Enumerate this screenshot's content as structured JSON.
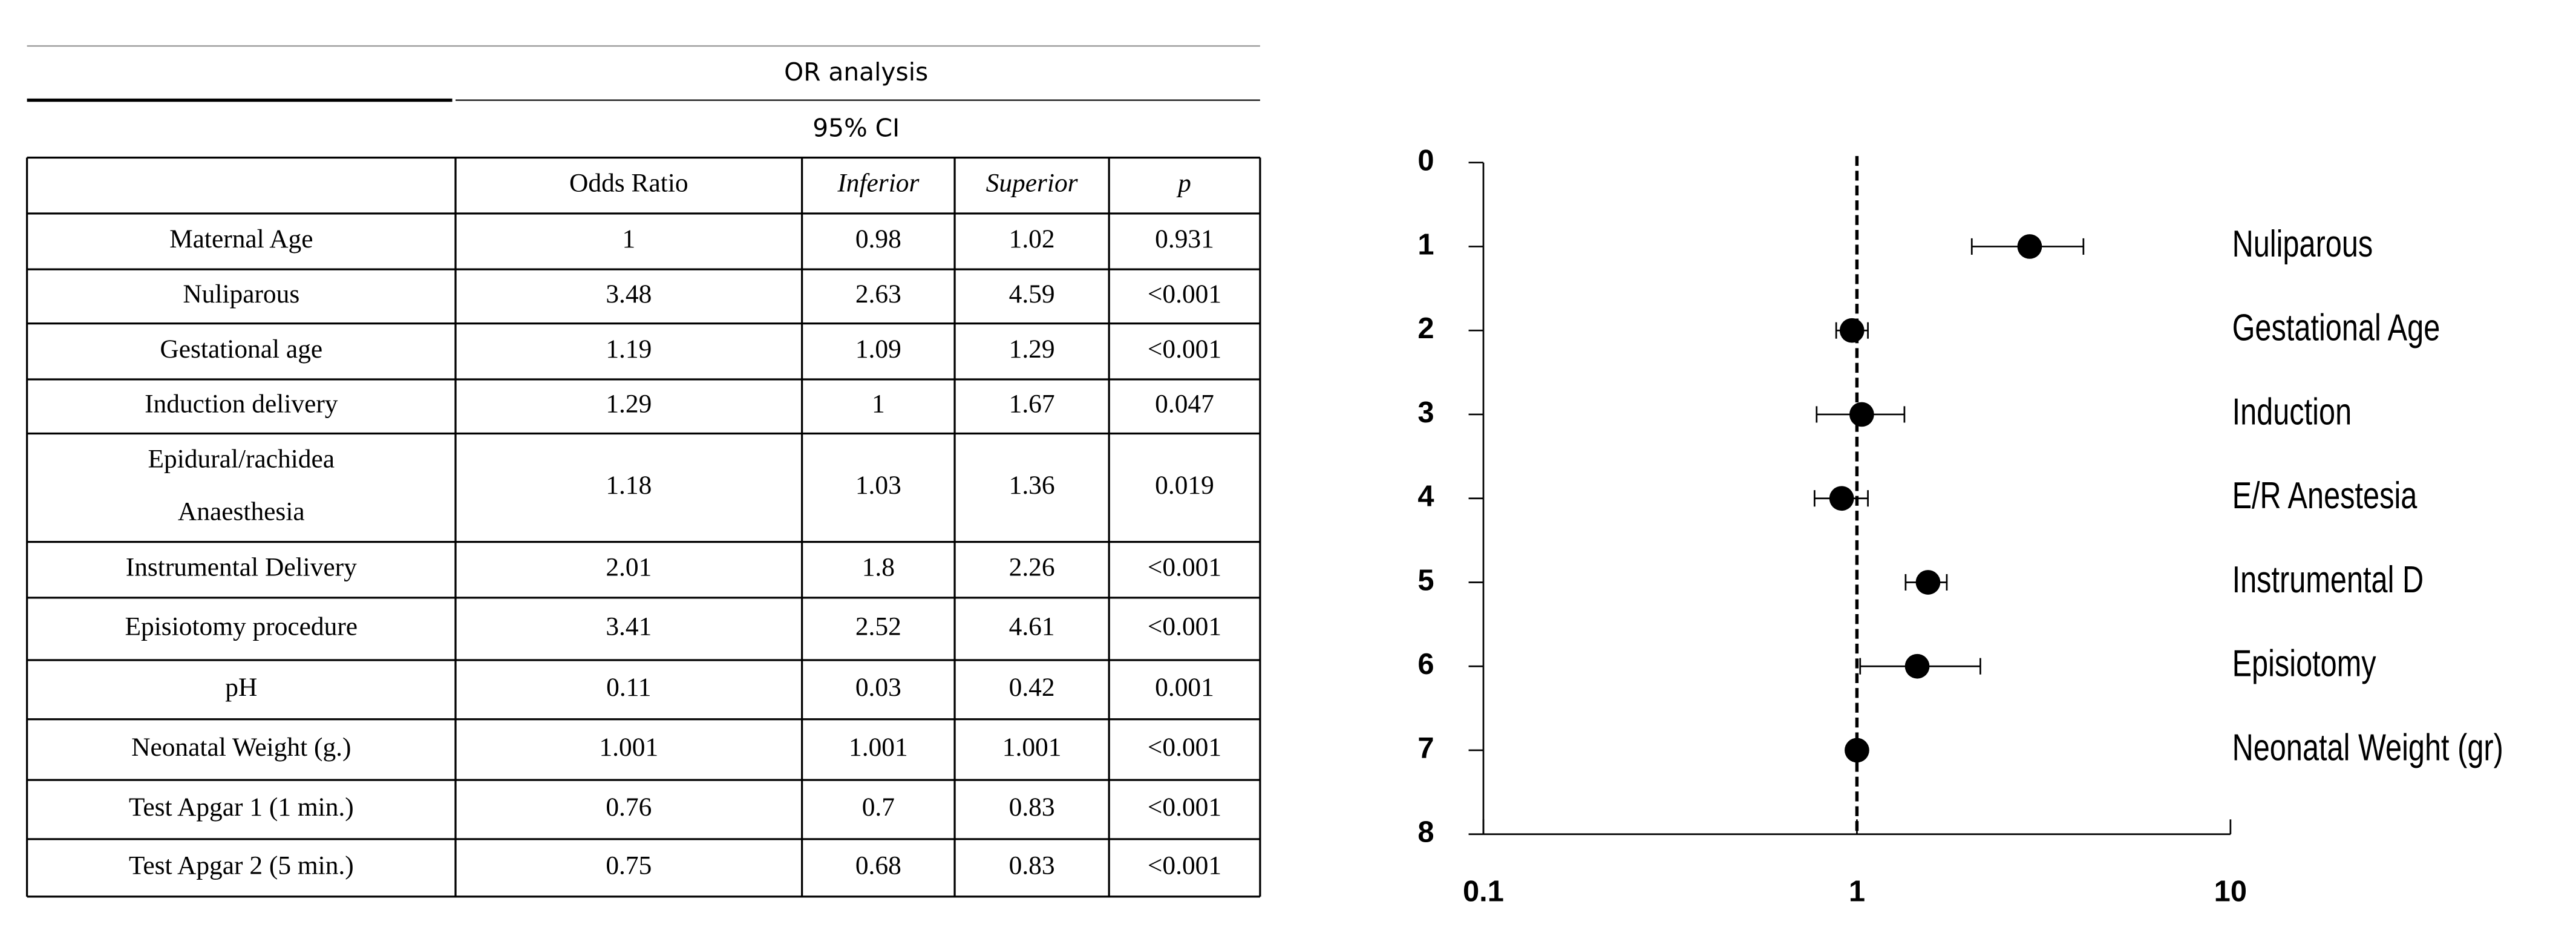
{
  "table": {
    "title": "OR analysis",
    "subtitle": "95% CI",
    "header": [
      "Odds Ratio",
      "Inferior",
      "Superior",
      "p"
    ],
    "rows": [
      [
        "Maternal Age",
        "1",
        "0.98",
        "1.02",
        "0.931"
      ],
      [
        "Nuliparous",
        "3.48",
        "2.63",
        "4.59",
        "<0.001"
      ],
      [
        "Gestational age",
        "1.19",
        "1.09",
        "1.29",
        "<0.001"
      ],
      [
        "Induction delivery",
        "1.29",
        "1",
        "1.67",
        "0.047"
      ],
      [
        [
          "Epidural/rachidea",
          "Anaesthesia"
        ],
        "1.18",
        "1.03",
        "1.36",
        "0.019"
      ],
      [
        "Instrumental Delivery",
        "2.01",
        "1.8",
        "2.26",
        "<0.001"
      ],
      [
        "Episiotomy procedure",
        "3.41",
        "2.52",
        "4.61",
        "<0.001"
      ],
      [
        "pH",
        "0.11",
        "0.03",
        "0.42",
        "0.001"
      ],
      [
        "Neonatal Weight (g.)",
        "1.001",
        "1.001",
        "1.001",
        "<0.001"
      ],
      [
        "Test Apgar 1 (1 min.)",
        "0.76",
        "0.7",
        "0.83",
        "<0.001"
      ],
      [
        "Test Apgar 2 (5 min.)",
        "0.75",
        "0.68",
        "0.83",
        "<0.001"
      ]
    ]
  },
  "chart_data": {
    "type": "forest",
    "log_x": true,
    "reference": 1,
    "categories": [
      "Nuliparous",
      "Gestational Age",
      "Induction",
      "E/R Anestesia",
      "Instrumental D",
      "Episiotomy",
      "Neonatal Weight (gr)"
    ],
    "y": [
      1,
      2,
      3,
      4,
      5,
      6,
      7
    ],
    "values": [
      2.9,
      0.97,
      1.03,
      0.91,
      1.55,
      1.45,
      1.0
    ],
    "lower": [
      2.03,
      0.88,
      0.78,
      0.77,
      1.35,
      1.02,
      null
    ],
    "upper": [
      4.04,
      1.07,
      1.34,
      1.07,
      1.74,
      2.14,
      null
    ],
    "color": "#000000",
    "xlim": [
      0.1,
      10
    ],
    "xticks": [
      0.1,
      1,
      10
    ],
    "ylim": [
      0,
      8
    ],
    "yticks": [
      0,
      1,
      2,
      3,
      4,
      5,
      6,
      7,
      8
    ]
  }
}
